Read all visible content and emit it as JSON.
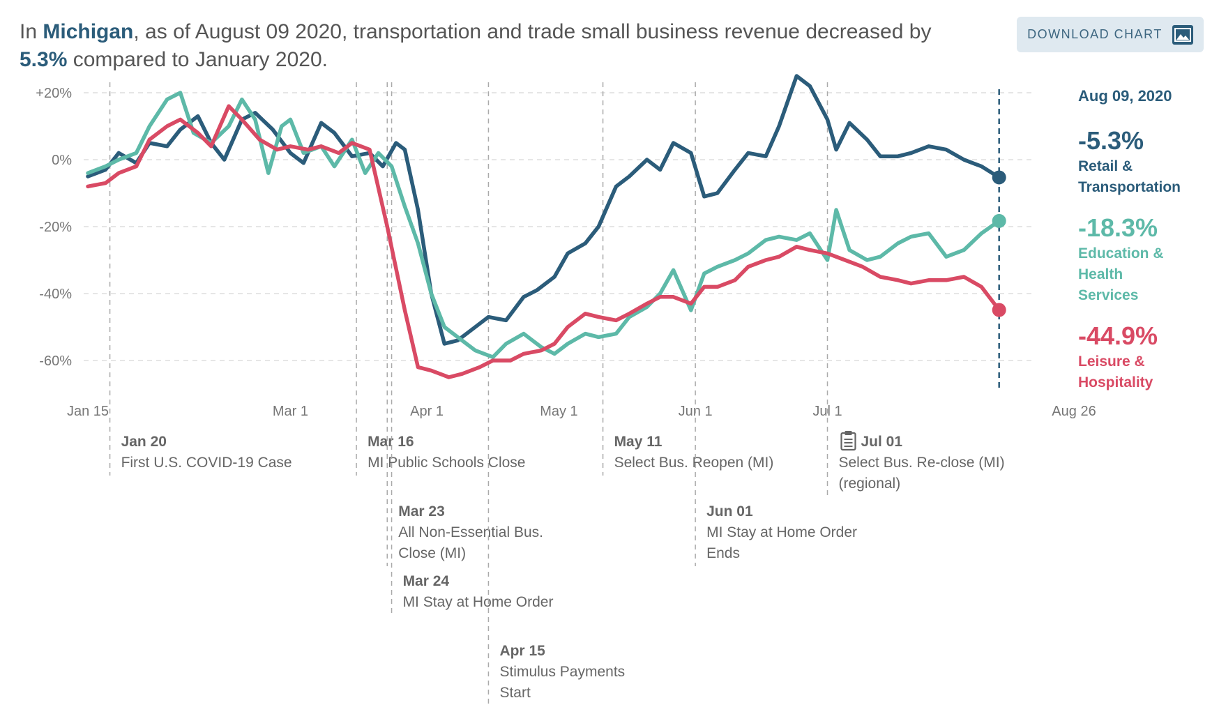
{
  "headline": {
    "prefix": "In",
    "state": "Michigan",
    "middle": ", as of August 09 2020, transportation and trade small business revenue decreased by",
    "change": "5.3%",
    "suffix": "compared to January 2020."
  },
  "download_button": {
    "label": "DOWNLOAD CHART",
    "icon": "image-icon"
  },
  "legend": {
    "date": "Aug 09, 2020",
    "items": [
      {
        "value": "-5.3%",
        "name_lines": [
          "Retail &",
          "Transportation"
        ],
        "color": "#2b5c7a"
      },
      {
        "value": "-18.3%",
        "name_lines": [
          "Education &",
          "Health",
          "Services"
        ],
        "color": "#5db9a8"
      },
      {
        "value": "-44.9%",
        "name_lines": [
          "Leisure &",
          "Hospitality"
        ],
        "color": "#d94a64"
      }
    ]
  },
  "chart_data": {
    "type": "line",
    "x_unit": "day of 2020",
    "xlim": [
      "2020-01-15",
      "2020-08-26"
    ],
    "x_ticks": [
      {
        "date": "2020-01-15",
        "label": "Jan 15"
      },
      {
        "date": "2020-03-01",
        "label": "Mar 1"
      },
      {
        "date": "2020-04-01",
        "label": "Apr 1"
      },
      {
        "date": "2020-05-01",
        "label": "May 1"
      },
      {
        "date": "2020-06-01",
        "label": "Jun 1"
      },
      {
        "date": "2020-07-01",
        "label": "Jul 1"
      },
      {
        "date": "2020-08-26",
        "label": "Aug 26"
      }
    ],
    "ylim": [
      -67,
      25
    ],
    "y_ticks": [
      {
        "value": 20,
        "label": "+20%"
      },
      {
        "value": 0,
        "label": "0%"
      },
      {
        "value": -20,
        "label": "-20%"
      },
      {
        "value": -40,
        "label": "-40%"
      },
      {
        "value": -60,
        "label": "-60%"
      }
    ],
    "grid": true,
    "current_date": "2020-08-09",
    "series": [
      {
        "name": "Retail & Transportation",
        "color": "#2b5c7a",
        "points": [
          [
            "2020-01-15",
            -5
          ],
          [
            "2020-01-19",
            -3
          ],
          [
            "2020-01-22",
            2
          ],
          [
            "2020-01-26",
            -1
          ],
          [
            "2020-01-29",
            5
          ],
          [
            "2020-02-02",
            4
          ],
          [
            "2020-02-05",
            9
          ],
          [
            "2020-02-09",
            13
          ],
          [
            "2020-02-12",
            5
          ],
          [
            "2020-02-15",
            0
          ],
          [
            "2020-02-19",
            12
          ],
          [
            "2020-02-22",
            14
          ],
          [
            "2020-02-26",
            9
          ],
          [
            "2020-03-01",
            2
          ],
          [
            "2020-03-04",
            -1
          ],
          [
            "2020-03-08",
            11
          ],
          [
            "2020-03-11",
            8
          ],
          [
            "2020-03-15",
            1
          ],
          [
            "2020-03-19",
            2
          ],
          [
            "2020-03-22",
            -2
          ],
          [
            "2020-03-25",
            5
          ],
          [
            "2020-03-27",
            3
          ],
          [
            "2020-03-30",
            -15
          ],
          [
            "2020-04-02",
            -40
          ],
          [
            "2020-04-05",
            -55
          ],
          [
            "2020-04-08",
            -54
          ],
          [
            "2020-04-12",
            -50
          ],
          [
            "2020-04-15",
            -47
          ],
          [
            "2020-04-19",
            -48
          ],
          [
            "2020-04-23",
            -41
          ],
          [
            "2020-04-26",
            -39
          ],
          [
            "2020-04-30",
            -35
          ],
          [
            "2020-05-03",
            -28
          ],
          [
            "2020-05-07",
            -25
          ],
          [
            "2020-05-10",
            -20
          ],
          [
            "2020-05-14",
            -8
          ],
          [
            "2020-05-17",
            -5
          ],
          [
            "2020-05-21",
            0
          ],
          [
            "2020-05-24",
            -3
          ],
          [
            "2020-05-27",
            5
          ],
          [
            "2020-05-31",
            2
          ],
          [
            "2020-06-03",
            -11
          ],
          [
            "2020-06-06",
            -10
          ],
          [
            "2020-06-10",
            -3
          ],
          [
            "2020-06-13",
            2
          ],
          [
            "2020-06-17",
            1
          ],
          [
            "2020-06-20",
            10
          ],
          [
            "2020-06-24",
            25
          ],
          [
            "2020-06-27",
            22
          ],
          [
            "2020-07-01",
            12
          ],
          [
            "2020-07-03",
            3
          ],
          [
            "2020-07-06",
            11
          ],
          [
            "2020-07-10",
            6
          ],
          [
            "2020-07-13",
            1
          ],
          [
            "2020-07-17",
            1
          ],
          [
            "2020-07-20",
            2
          ],
          [
            "2020-07-24",
            4
          ],
          [
            "2020-07-28",
            3
          ],
          [
            "2020-08-01",
            0
          ],
          [
            "2020-08-05",
            -2
          ],
          [
            "2020-08-09",
            -5.3
          ]
        ]
      },
      {
        "name": "Education & Health Services",
        "color": "#5db9a8",
        "points": [
          [
            "2020-01-15",
            -4
          ],
          [
            "2020-01-19",
            -2
          ],
          [
            "2020-01-22",
            0
          ],
          [
            "2020-01-26",
            2
          ],
          [
            "2020-01-29",
            10
          ],
          [
            "2020-02-02",
            18
          ],
          [
            "2020-02-05",
            20
          ],
          [
            "2020-02-08",
            8
          ],
          [
            "2020-02-12",
            5
          ],
          [
            "2020-02-16",
            10
          ],
          [
            "2020-02-19",
            18
          ],
          [
            "2020-02-22",
            12
          ],
          [
            "2020-02-25",
            -4
          ],
          [
            "2020-02-28",
            10
          ],
          [
            "2020-03-01",
            12
          ],
          [
            "2020-03-04",
            2
          ],
          [
            "2020-03-08",
            4
          ],
          [
            "2020-03-11",
            -2
          ],
          [
            "2020-03-15",
            6
          ],
          [
            "2020-03-18",
            -4
          ],
          [
            "2020-03-21",
            2
          ],
          [
            "2020-03-24",
            -2
          ],
          [
            "2020-03-27",
            -14
          ],
          [
            "2020-03-30",
            -25
          ],
          [
            "2020-04-02",
            -40
          ],
          [
            "2020-04-05",
            -50
          ],
          [
            "2020-04-08",
            -53
          ],
          [
            "2020-04-12",
            -57
          ],
          [
            "2020-04-16",
            -59
          ],
          [
            "2020-04-19",
            -55
          ],
          [
            "2020-04-23",
            -52
          ],
          [
            "2020-04-27",
            -56
          ],
          [
            "2020-04-30",
            -58
          ],
          [
            "2020-05-03",
            -55
          ],
          [
            "2020-05-07",
            -52
          ],
          [
            "2020-05-10",
            -53
          ],
          [
            "2020-05-14",
            -52
          ],
          [
            "2020-05-17",
            -47
          ],
          [
            "2020-05-21",
            -44
          ],
          [
            "2020-05-24",
            -40
          ],
          [
            "2020-05-27",
            -33
          ],
          [
            "2020-05-31",
            -45
          ],
          [
            "2020-06-03",
            -34
          ],
          [
            "2020-06-06",
            -32
          ],
          [
            "2020-06-10",
            -30
          ],
          [
            "2020-06-13",
            -28
          ],
          [
            "2020-06-17",
            -24
          ],
          [
            "2020-06-20",
            -23
          ],
          [
            "2020-06-24",
            -24
          ],
          [
            "2020-06-27",
            -22
          ],
          [
            "2020-07-01",
            -30
          ],
          [
            "2020-07-03",
            -15
          ],
          [
            "2020-07-06",
            -27
          ],
          [
            "2020-07-10",
            -30
          ],
          [
            "2020-07-13",
            -29
          ],
          [
            "2020-07-17",
            -25
          ],
          [
            "2020-07-20",
            -23
          ],
          [
            "2020-07-24",
            -22
          ],
          [
            "2020-07-28",
            -29
          ],
          [
            "2020-08-01",
            -27
          ],
          [
            "2020-08-05",
            -22
          ],
          [
            "2020-08-09",
            -18.3
          ]
        ]
      },
      {
        "name": "Leisure & Hospitality",
        "color": "#d94a64",
        "points": [
          [
            "2020-01-15",
            -8
          ],
          [
            "2020-01-19",
            -7
          ],
          [
            "2020-01-22",
            -4
          ],
          [
            "2020-01-26",
            -2
          ],
          [
            "2020-01-29",
            6
          ],
          [
            "2020-02-02",
            10
          ],
          [
            "2020-02-05",
            12
          ],
          [
            "2020-02-09",
            8
          ],
          [
            "2020-02-12",
            4
          ],
          [
            "2020-02-16",
            16
          ],
          [
            "2020-02-19",
            12
          ],
          [
            "2020-02-23",
            6
          ],
          [
            "2020-02-27",
            3
          ],
          [
            "2020-03-01",
            4
          ],
          [
            "2020-03-05",
            3
          ],
          [
            "2020-03-08",
            4
          ],
          [
            "2020-03-12",
            2
          ],
          [
            "2020-03-15",
            5
          ],
          [
            "2020-03-19",
            3
          ],
          [
            "2020-03-23",
            -20
          ],
          [
            "2020-03-27",
            -45
          ],
          [
            "2020-03-30",
            -62
          ],
          [
            "2020-04-02",
            -63
          ],
          [
            "2020-04-06",
            -65
          ],
          [
            "2020-04-09",
            -64
          ],
          [
            "2020-04-13",
            -62
          ],
          [
            "2020-04-16",
            -60
          ],
          [
            "2020-04-20",
            -60
          ],
          [
            "2020-04-23",
            -58
          ],
          [
            "2020-04-27",
            -57
          ],
          [
            "2020-04-30",
            -55
          ],
          [
            "2020-05-03",
            -50
          ],
          [
            "2020-05-07",
            -46
          ],
          [
            "2020-05-10",
            -47
          ],
          [
            "2020-05-14",
            -48
          ],
          [
            "2020-05-17",
            -46
          ],
          [
            "2020-05-21",
            -43
          ],
          [
            "2020-05-24",
            -41
          ],
          [
            "2020-05-27",
            -41
          ],
          [
            "2020-05-31",
            -43
          ],
          [
            "2020-06-03",
            -38
          ],
          [
            "2020-06-06",
            -38
          ],
          [
            "2020-06-10",
            -36
          ],
          [
            "2020-06-13",
            -32
          ],
          [
            "2020-06-17",
            -30
          ],
          [
            "2020-06-20",
            -29
          ],
          [
            "2020-06-24",
            -26
          ],
          [
            "2020-06-27",
            -27
          ],
          [
            "2020-07-01",
            -28
          ],
          [
            "2020-07-05",
            -30
          ],
          [
            "2020-07-09",
            -32
          ],
          [
            "2020-07-13",
            -35
          ],
          [
            "2020-07-17",
            -36
          ],
          [
            "2020-07-20",
            -37
          ],
          [
            "2020-07-24",
            -36
          ],
          [
            "2020-07-28",
            -36
          ],
          [
            "2020-08-01",
            -35
          ],
          [
            "2020-08-05",
            -38
          ],
          [
            "2020-08-09",
            -44.9
          ]
        ]
      }
    ],
    "events": [
      {
        "date": "2020-01-20",
        "label_date": "Jan 20",
        "label_lines": [
          "First U.S. COVID-19 Case"
        ],
        "row": 0
      },
      {
        "date": "2020-03-16",
        "label_date": "Mar 16",
        "label_lines": [
          "MI Public Schools Close"
        ],
        "row": 0
      },
      {
        "date": "2020-03-23",
        "label_date": "Mar 23",
        "label_lines": [
          "All Non-Essential Bus.",
          "Close (MI)"
        ],
        "row": 1
      },
      {
        "date": "2020-03-24",
        "label_date": "Mar 24",
        "label_lines": [
          "MI Stay at Home Order"
        ],
        "row": 2
      },
      {
        "date": "2020-04-15",
        "label_date": "Apr 15",
        "label_lines": [
          "Stimulus Payments",
          "Start"
        ],
        "row": 3
      },
      {
        "date": "2020-05-11",
        "label_date": "May 11",
        "label_lines": [
          "Select Bus. Reopen (MI)"
        ],
        "row": 0
      },
      {
        "date": "2020-06-01",
        "label_date": "Jun 01",
        "label_lines": [
          "MI Stay at Home Order",
          "Ends"
        ],
        "row": 1
      },
      {
        "date": "2020-07-01",
        "label_date": "Jul 01",
        "label_lines": [
          "Select Bus. Re-close (MI)",
          "(regional)"
        ],
        "row": 0,
        "icon": "clipboard-icon"
      }
    ]
  }
}
